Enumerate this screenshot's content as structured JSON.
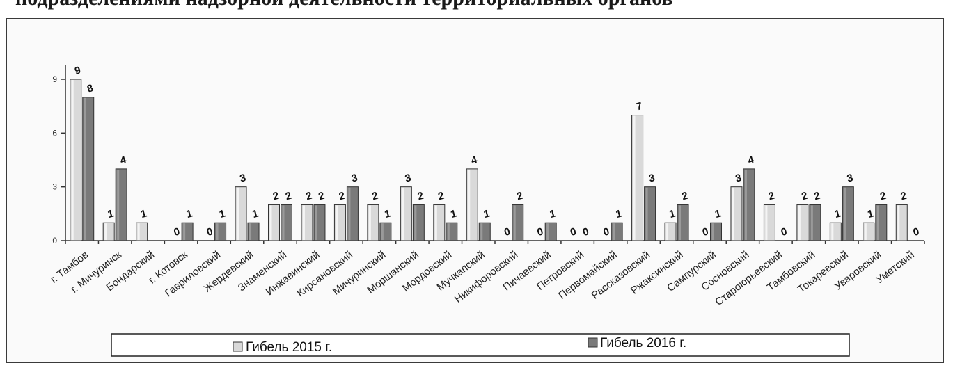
{
  "header": {
    "title": "подразделениями надзорной деятельности территориальных органов"
  },
  "chart_data": {
    "type": "bar",
    "categories": [
      "г. Тамбов",
      "г. Мичуринск",
      "Бондарский",
      "г. Котовск",
      "Гавриловский",
      "Жердевский",
      "Знаменский",
      "Инжавинский",
      "Кирсановский",
      "Мичуринский",
      "Моршанский",
      "Мордовский",
      "Мучкапский",
      "Никифоровский",
      "Пичаевский",
      "Петровский",
      "Первомайский",
      "Рассказовский",
      "Ржаксинский",
      "Сампурский",
      "Сосновский",
      "Староюрьевский",
      "Тамбовский",
      "Токаревский",
      "Уваровский",
      "Уметский"
    ],
    "series": [
      {
        "name": "Гибель 2015 г.",
        "values": [
          9,
          1,
          1,
          0,
          0,
          3,
          2,
          2,
          2,
          2,
          3,
          2,
          4,
          0,
          0,
          0,
          0,
          7,
          1,
          0,
          3,
          2,
          2,
          1,
          1,
          2
        ]
      },
      {
        "name": "Гибель 2016 г.",
        "values": [
          8,
          4,
          "",
          1,
          1,
          1,
          2,
          2,
          3,
          1,
          2,
          1,
          1,
          2,
          1,
          0,
          1,
          3,
          2,
          1,
          4,
          0,
          2,
          3,
          2,
          0
        ]
      }
    ],
    "yticks": [
      "0",
      "3",
      "6",
      "9"
    ],
    "ylim": [
      0,
      9.5
    ],
    "legend": "bottom",
    "colors": {
      "s2015": "#d9d9d9",
      "s2016": "#7a7a7a"
    }
  }
}
